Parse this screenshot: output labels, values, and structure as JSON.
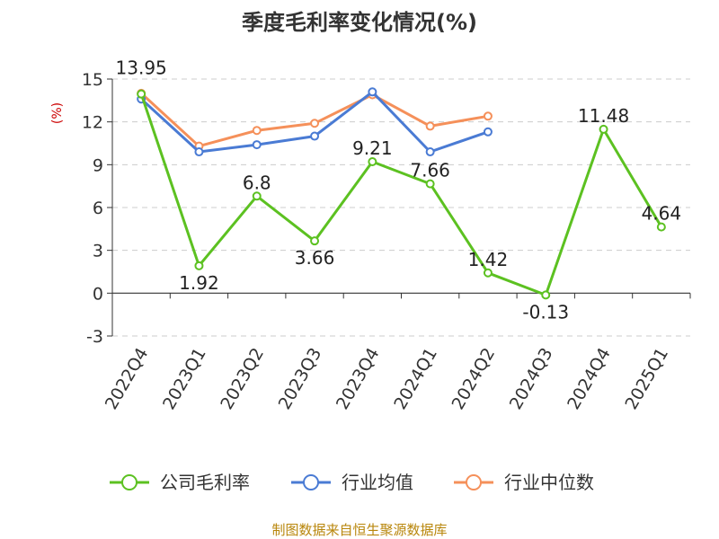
{
  "chart_data": {
    "type": "line",
    "title": "季度毛利率变化情况(%)",
    "ylabel": "(%)",
    "xlabel": "",
    "categories": [
      "2022Q4",
      "2023Q1",
      "2023Q2",
      "2023Q3",
      "2023Q4",
      "2024Q1",
      "2024Q2",
      "2024Q3",
      "2024Q4",
      "2025Q1"
    ],
    "yticks": [
      "-3",
      "0",
      "3",
      "6",
      "9",
      "12",
      "15"
    ],
    "ylim": [
      -3,
      15
    ],
    "grid": true,
    "legend_position": "bottom",
    "series": [
      {
        "name": "公司毛利率",
        "color": "#5cc121",
        "values": [
          13.95,
          1.92,
          6.8,
          3.66,
          9.21,
          7.66,
          1.42,
          -0.13,
          11.48,
          4.64
        ],
        "labels": [
          "13.95",
          "1.92",
          "6.8",
          "3.66",
          "9.21",
          "7.66",
          "1.42",
          "-0.13",
          "11.48",
          "4.64"
        ]
      },
      {
        "name": "行业均值",
        "color": "#4a7bd4",
        "values": [
          13.6,
          9.9,
          10.4,
          11.0,
          14.1,
          9.9,
          11.3,
          null,
          null,
          null
        ]
      },
      {
        "name": "行业中位数",
        "color": "#f5905a",
        "values": [
          14.0,
          10.3,
          11.4,
          11.9,
          13.9,
          11.7,
          12.4,
          null,
          null,
          null
        ]
      }
    ]
  },
  "source_text": "制图数据来自恒生聚源数据库"
}
